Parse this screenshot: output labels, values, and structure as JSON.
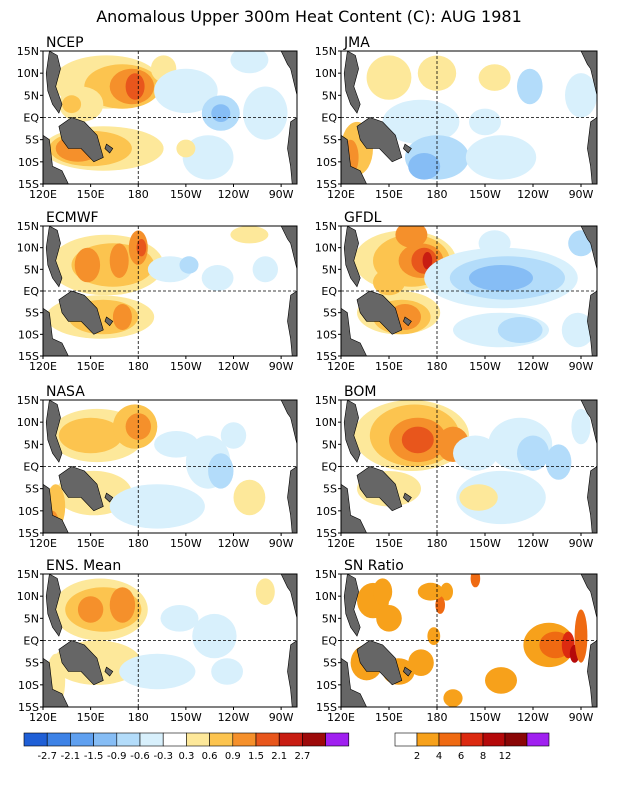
{
  "figure": {
    "title": "Anomalous Upper 300m Heat Content (C): AUG 1981"
  },
  "axes": {
    "lat_labels": [
      "15N",
      "10N",
      "5N",
      "EQ",
      "5S",
      "10S",
      "15S"
    ],
    "lon_labels": [
      "120E",
      "150E",
      "180",
      "150W",
      "120W",
      "90W"
    ]
  },
  "panels": [
    {
      "id": "ncep",
      "title": "NCEP"
    },
    {
      "id": "jma",
      "title": "JMA"
    },
    {
      "id": "ecmwf",
      "title": "ECMWF"
    },
    {
      "id": "gfdl",
      "title": "GFDL"
    },
    {
      "id": "nasa",
      "title": "NASA"
    },
    {
      "id": "bom",
      "title": "BOM"
    },
    {
      "id": "ens",
      "title": "ENS. Mean"
    },
    {
      "id": "sn",
      "title": "SN Ratio"
    }
  ],
  "colorbars": {
    "anomaly": {
      "colors": [
        "#1f5fd6",
        "#3d82e6",
        "#5fa0f0",
        "#86bdf5",
        "#b3dcfa",
        "#d8f0fc",
        "#ffffff",
        "#fde89a",
        "#fcc44f",
        "#f5902b",
        "#e8561c",
        "#c81d12",
        "#9d0a0a",
        "#a020f0"
      ],
      "labels": [
        "-2.7",
        "-2.1",
        "-1.5",
        "-0.9",
        "-0.6",
        "-0.3",
        "0.3",
        "0.6",
        "0.9",
        "1.5",
        "2.1",
        "2.7"
      ]
    },
    "snr": {
      "colors": [
        "#ffffff",
        "#f7a11b",
        "#ef6a12",
        "#dc2a10",
        "#b5090a",
        "#8a0606",
        "#a020f0"
      ],
      "labels": [
        "2",
        "4",
        "6",
        "8",
        "12"
      ]
    }
  },
  "palette": {
    "land": "#666666",
    "coast": "#000000"
  }
}
